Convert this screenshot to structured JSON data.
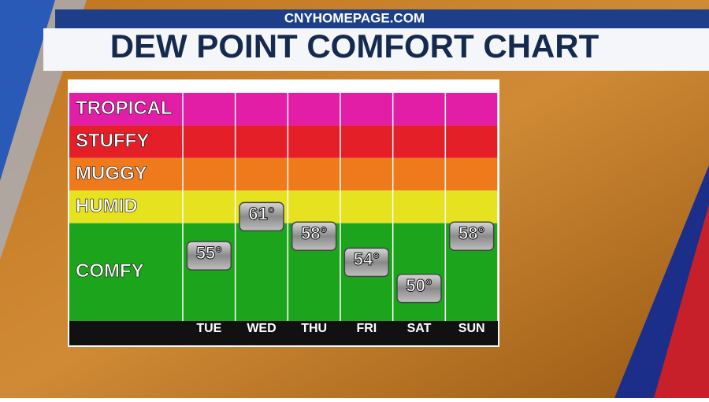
{
  "site": "CNYHOMEPAGE.COM",
  "chart_data": {
    "type": "point",
    "title": "DEW POINT COMFORT CHART",
    "categories": [
      "TUE",
      "WED",
      "THU",
      "FRI",
      "SAT",
      "SUN"
    ],
    "values": [
      55,
      61,
      58,
      54,
      50,
      58
    ],
    "value_labels": [
      "55°",
      "61°",
      "58°",
      "54°",
      "50°",
      "58°"
    ],
    "ylim": [
      45,
      80
    ],
    "bands": [
      {
        "name": "TROPICAL",
        "color": "#e21ea6",
        "range": [
          75,
          80
        ]
      },
      {
        "name": "STUFFY",
        "color": "#e41f28",
        "range": [
          70,
          75
        ]
      },
      {
        "name": "MUGGY",
        "color": "#ee7a1c",
        "range": [
          65,
          70
        ]
      },
      {
        "name": "HUMID",
        "color": "#e6e220",
        "range": [
          60,
          65
        ]
      },
      {
        "name": "COMFY",
        "color": "#1ca51c",
        "range": [
          45,
          60
        ]
      }
    ]
  }
}
